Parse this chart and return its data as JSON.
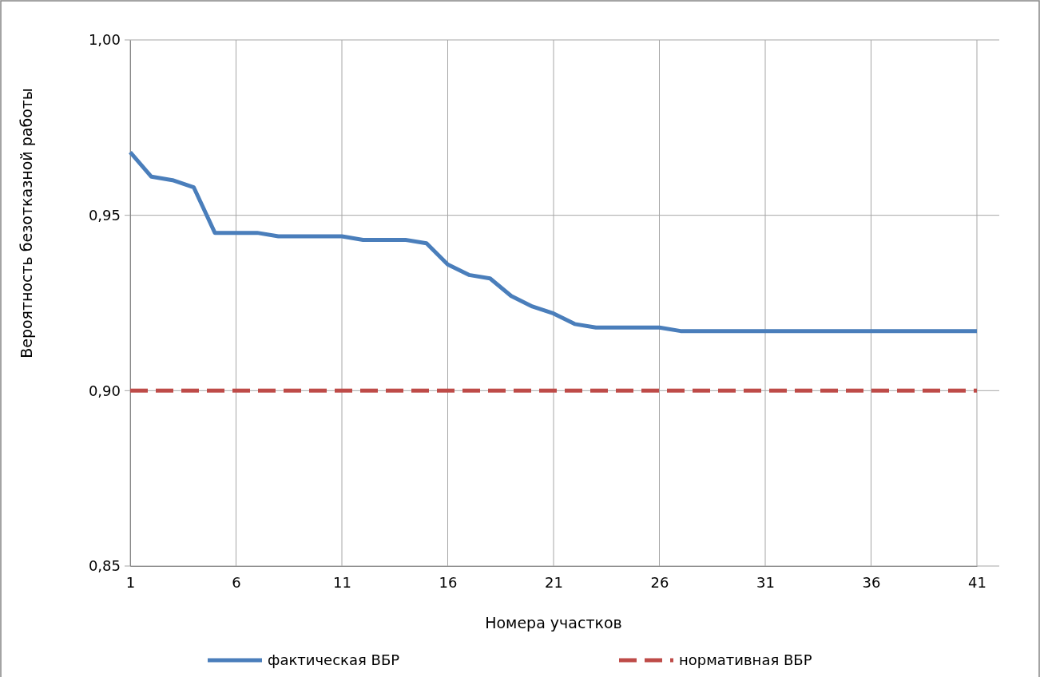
{
  "chart_data": {
    "type": "line",
    "xlabel": "Номера участков",
    "ylabel": "Вероятность безотказной работы",
    "x": [
      1,
      2,
      3,
      4,
      5,
      6,
      7,
      8,
      9,
      10,
      11,
      12,
      13,
      14,
      15,
      16,
      17,
      18,
      19,
      20,
      21,
      22,
      23,
      24,
      25,
      26,
      27,
      28,
      29,
      30,
      31,
      32,
      33,
      34,
      35,
      36,
      37,
      38,
      39,
      40,
      41
    ],
    "xlim": [
      1,
      41
    ],
    "xticks": [
      1,
      6,
      11,
      16,
      21,
      26,
      31,
      36,
      41
    ],
    "ylim": [
      0.85,
      1
    ],
    "yticks": [
      {
        "value": 0.85,
        "label": "0,85"
      },
      {
        "value": 0.9,
        "label": "0,90"
      },
      {
        "value": 0.95,
        "label": "0,95"
      },
      {
        "value": 1,
        "label": "1,00"
      }
    ],
    "grid": true,
    "legend": "bottom",
    "marker": "none",
    "series": [
      {
        "name": "фактическая ВБР",
        "color": "#4a7ebb",
        "line_style": "solid",
        "values": [
          0.968,
          0.961,
          0.96,
          0.958,
          0.945,
          0.945,
          0.945,
          0.944,
          0.944,
          0.944,
          0.944,
          0.943,
          0.943,
          0.943,
          0.942,
          0.936,
          0.933,
          0.932,
          0.927,
          0.924,
          0.922,
          0.919,
          0.918,
          0.918,
          0.918,
          0.918,
          0.917,
          0.917,
          0.917,
          0.917,
          0.917,
          0.917,
          0.917,
          0.917,
          0.917,
          0.917,
          0.917,
          0.917,
          0.917,
          0.917,
          0.917
        ]
      },
      {
        "name": "нормативная ВБР",
        "color": "#be4b48",
        "line_style": "dashed",
        "values": [
          0.9,
          0.9,
          0.9,
          0.9,
          0.9,
          0.9,
          0.9,
          0.9,
          0.9,
          0.9,
          0.9,
          0.9,
          0.9,
          0.9,
          0.9,
          0.9,
          0.9,
          0.9,
          0.9,
          0.9,
          0.9,
          0.9,
          0.9,
          0.9,
          0.9,
          0.9,
          0.9,
          0.9,
          0.9,
          0.9,
          0.9,
          0.9,
          0.9,
          0.9,
          0.9,
          0.9,
          0.9,
          0.9,
          0.9,
          0.9,
          0.9
        ]
      }
    ]
  }
}
